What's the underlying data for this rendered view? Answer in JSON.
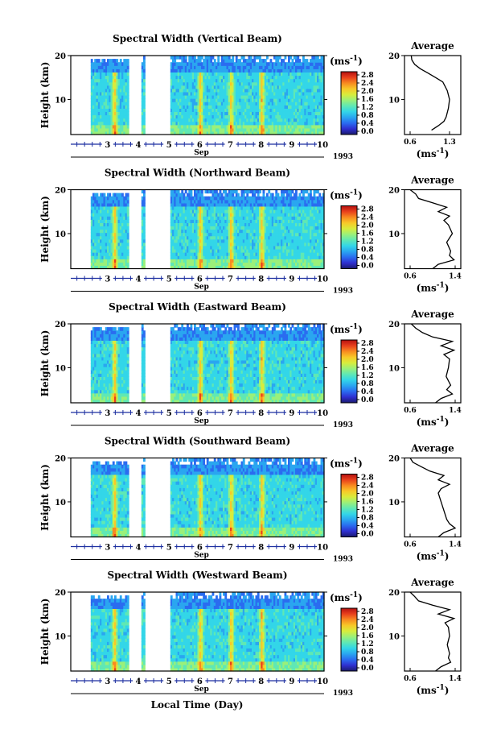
{
  "figure": {
    "bottom_label": "Local Time (Day)"
  },
  "colorbar": {
    "unit_label": "(ms",
    "unit_exp": "-1",
    "unit_close": ")",
    "ticks": [
      "0.0",
      "0.4",
      "0.8",
      "1.2",
      "1.6",
      "2.0",
      "2.4",
      "2.8"
    ],
    "colors": [
      "#1a1a6e",
      "#2f2fd0",
      "#2a6cf0",
      "#2aa6f0",
      "#33d6e8",
      "#5fe8b4",
      "#9af07a",
      "#d8ec3c",
      "#f8c828",
      "#f88a20",
      "#e8401c",
      "#b41010"
    ]
  },
  "chart_data": [
    {
      "type": "heatmap",
      "title": "Spectral Width (Vertical Beam)",
      "ylabel": "Height (km)",
      "ylim": [
        2,
        20
      ],
      "yticks": [
        "20",
        "10"
      ],
      "xticks": [
        "3",
        "4",
        "5",
        "6",
        "7",
        "8",
        "9",
        "10"
      ],
      "xlabel": "Sep",
      "year": "1993",
      "data_gaps_days": [
        [
          4.15,
          4.55
        ],
        [
          4.7,
          5.5
        ]
      ],
      "bright_bands_days": [
        3.7,
        6.5,
        7.5,
        8.5
      ],
      "average_profile": {
        "title": "Average",
        "ylabel_ticks": [
          "20",
          "10"
        ],
        "xticks": [
          "0.6",
          "1.3"
        ],
        "xlabel": "(ms",
        "xlabel_exp": "-1",
        "xlabel_close": ")",
        "xlim": [
          0.5,
          1.5
        ],
        "x": [
          0.62,
          0.63,
          0.68,
          0.78,
          0.92,
          1.05,
          1.18,
          1.22,
          1.26,
          1.3,
          1.28,
          1.24,
          1.2,
          1.1,
          0.98
        ],
        "y": [
          20,
          19,
          18,
          17,
          16,
          15,
          14,
          13,
          12,
          10,
          8,
          6,
          5,
          4,
          3
        ]
      }
    },
    {
      "type": "heatmap",
      "title": "Spectral Width (Northward Beam)",
      "ylabel": "Height (km)",
      "ylim": [
        2,
        20
      ],
      "yticks": [
        "20",
        "10"
      ],
      "xticks": [
        "3",
        "4",
        "5",
        "6",
        "7",
        "8",
        "9",
        "10"
      ],
      "xlabel": "Sep",
      "year": "1993",
      "data_gaps_days": [
        [
          4.15,
          4.55
        ],
        [
          4.7,
          5.5
        ]
      ],
      "bright_bands_days": [
        3.7,
        6.5,
        7.5,
        8.5
      ],
      "average_profile": {
        "title": "Average",
        "ylabel_ticks": [
          "20",
          "10"
        ],
        "xticks": [
          "0.6",
          "1.4"
        ],
        "xlabel": "(ms",
        "xlabel_exp": "-1",
        "xlabel_close": ")",
        "xlim": [
          0.5,
          1.5
        ],
        "x": [
          0.6,
          0.7,
          0.75,
          1.0,
          1.25,
          1.1,
          1.3,
          1.2,
          1.28,
          1.35,
          1.25,
          1.32,
          1.3,
          1.38,
          1.1,
          1.0
        ],
        "y": [
          20,
          19,
          18,
          17,
          16,
          15,
          14,
          13,
          12,
          10,
          8,
          6,
          5,
          4,
          3,
          2
        ]
      }
    },
    {
      "type": "heatmap",
      "title": "Spectral Width (Eastward Beam)",
      "ylabel": "Height (km)",
      "ylim": [
        2,
        20
      ],
      "yticks": [
        "20",
        "10"
      ],
      "xticks": [
        "3",
        "4",
        "5",
        "6",
        "7",
        "8",
        "9",
        "10"
      ],
      "xlabel": "Sep",
      "year": "1993",
      "data_gaps_days": [
        [
          4.15,
          4.55
        ],
        [
          4.7,
          5.5
        ]
      ],
      "bright_bands_days": [
        3.7,
        6.5,
        7.5,
        8.5
      ],
      "average_profile": {
        "title": "Average",
        "ylabel_ticks": [
          "20",
          "10"
        ],
        "xticks": [
          "0.6",
          "1.4"
        ],
        "xlabel": "(ms",
        "xlabel_exp": "-1",
        "xlabel_close": ")",
        "xlim": [
          0.5,
          1.5
        ],
        "x": [
          0.62,
          0.7,
          0.82,
          1.0,
          1.35,
          1.15,
          1.38,
          1.2,
          1.3,
          1.28,
          1.24,
          1.32,
          1.25,
          1.35,
          1.15,
          1.05
        ],
        "y": [
          20,
          19,
          18,
          17,
          16,
          15,
          14,
          13,
          12,
          10,
          8,
          6,
          5,
          4,
          3,
          2
        ]
      }
    },
    {
      "type": "heatmap",
      "title": "Spectral Width (Southward Beam)",
      "ylabel": "Height (km)",
      "ylim": [
        2,
        20
      ],
      "yticks": [
        "20",
        "10"
      ],
      "xticks": [
        "3",
        "4",
        "5",
        "6",
        "7",
        "8",
        "9",
        "10"
      ],
      "xlabel": "Sep",
      "year": "1993",
      "data_gaps_days": [
        [
          4.15,
          4.55
        ],
        [
          4.7,
          5.5
        ]
      ],
      "bright_bands_days": [
        3.7,
        6.5,
        7.5,
        8.5
      ],
      "average_profile": {
        "title": "Average",
        "ylabel_ticks": [
          "20",
          "10"
        ],
        "xticks": [
          "0.6",
          "1.4"
        ],
        "xlabel": "(ms",
        "xlabel_exp": "-1",
        "xlabel_close": ")",
        "xlim": [
          0.5,
          1.5
        ],
        "x": [
          0.6,
          0.65,
          0.8,
          0.95,
          1.2,
          1.1,
          1.3,
          1.15,
          1.1,
          1.15,
          1.2,
          1.25,
          1.3,
          1.4,
          1.2,
          1.1
        ],
        "y": [
          20,
          19,
          18,
          17,
          16,
          15,
          14,
          13,
          12,
          10,
          8,
          6,
          5,
          4,
          3,
          2
        ]
      }
    },
    {
      "type": "heatmap",
      "title": "Spectral Width (Westward Beam)",
      "ylabel": "Height (km)",
      "ylim": [
        2,
        20
      ],
      "yticks": [
        "20",
        "10"
      ],
      "xticks": [
        "3",
        "4",
        "5",
        "6",
        "7",
        "8",
        "9",
        "10"
      ],
      "xlabel": "Sep",
      "year": "1993",
      "data_gaps_days": [
        [
          4.15,
          4.55
        ],
        [
          4.7,
          5.5
        ]
      ],
      "bright_bands_days": [
        3.7,
        6.5,
        7.5,
        8.5
      ],
      "average_profile": {
        "title": "Average",
        "ylabel_ticks": [
          "20",
          "10"
        ],
        "xticks": [
          "0.6",
          "1.4"
        ],
        "xlabel": "(ms",
        "xlabel_exp": "-1",
        "xlabel_close": ")",
        "xlim": [
          0.5,
          1.5
        ],
        "x": [
          0.6,
          0.68,
          0.75,
          1.0,
          1.3,
          1.1,
          1.38,
          1.22,
          1.28,
          1.3,
          1.26,
          1.3,
          1.28,
          1.32,
          1.15,
          1.05
        ],
        "y": [
          20,
          19,
          18,
          17,
          16,
          15,
          14,
          13,
          12,
          10,
          8,
          6,
          5,
          4,
          3,
          2
        ]
      }
    }
  ]
}
